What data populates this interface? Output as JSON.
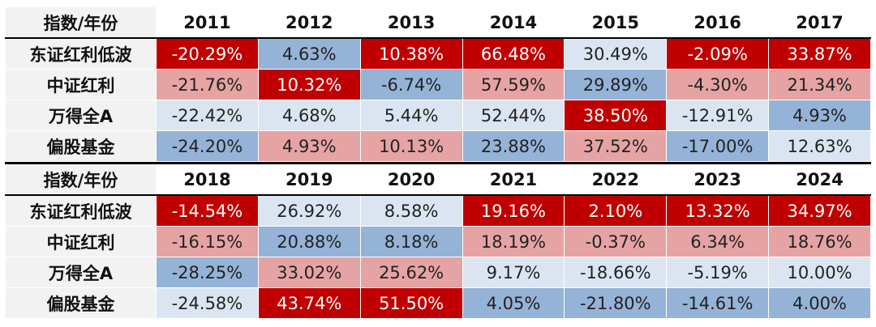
{
  "tables": [
    {
      "header": [
        "指数/年份",
        "2011",
        "2012",
        "2013",
        "2014",
        "2015",
        "2016",
        "2017"
      ],
      "rows": [
        [
          "东证红利低波",
          "-20.29%",
          "4.63%",
          "10.38%",
          "66.48%",
          "30.49%",
          "-2.09%",
          "33.87%"
        ],
        [
          "中证红利",
          "-21.76%",
          "10.32%",
          "-6.74%",
          "57.59%",
          "29.89%",
          "-4.30%",
          "21.34%"
        ],
        [
          "万得全A",
          "-22.42%",
          "4.68%",
          "5.44%",
          "52.44%",
          "38.50%",
          "-12.91%",
          "4.93%"
        ],
        [
          "偏股基金",
          "-24.20%",
          "4.93%",
          "10.13%",
          "23.88%",
          "37.52%",
          "-17.00%",
          "12.63%"
        ]
      ],
      "colors": [
        [
          "#c00000",
          "#95b3d7",
          "#c00000",
          "#c00000",
          "#dbe5f1",
          "#c00000",
          "#c00000"
        ],
        [
          "#e6a3a3",
          "#c00000",
          "#95b3d7",
          "#e6a3a3",
          "#95b3d7",
          "#e6a3a3",
          "#e6a3a3"
        ],
        [
          "#dbe5f1",
          "#dbe5f1",
          "#dbe5f1",
          "#dbe5f1",
          "#c00000",
          "#dbe5f1",
          "#95b3d7"
        ],
        [
          "#95b3d7",
          "#e6a3a3",
          "#e6a3a3",
          "#95b3d7",
          "#e6a3a3",
          "#95b3d7",
          "#dbe5f1"
        ]
      ]
    },
    {
      "header": [
        "指数/年份",
        "2018",
        "2019",
        "2020",
        "2021",
        "2022",
        "2023",
        "2024"
      ],
      "rows": [
        [
          "东证红利低波",
          "-14.54%",
          "26.92%",
          "8.58%",
          "19.16%",
          "2.10%",
          "13.32%",
          "34.97%"
        ],
        [
          "中证红利",
          "-16.15%",
          "20.88%",
          "8.18%",
          "18.19%",
          "-0.37%",
          "6.34%",
          "18.76%"
        ],
        [
          "万得全A",
          "-28.25%",
          "33.02%",
          "25.62%",
          "9.17%",
          "-18.66%",
          "-5.19%",
          "10.00%"
        ],
        [
          "偏股基金",
          "-24.58%",
          "43.74%",
          "51.50%",
          "4.05%",
          "-21.80%",
          "-14.61%",
          "4.00%"
        ]
      ],
      "colors": [
        [
          "#c00000",
          "#dbe5f1",
          "#dbe5f1",
          "#c00000",
          "#c00000",
          "#c00000",
          "#c00000"
        ],
        [
          "#e6a3a3",
          "#95b3d7",
          "#95b3d7",
          "#e6a3a3",
          "#e6a3a3",
          "#e6a3a3",
          "#e6a3a3"
        ],
        [
          "#95b3d7",
          "#e6a3a3",
          "#e6a3a3",
          "#dbe5f1",
          "#dbe5f1",
          "#dbe5f1",
          "#dbe5f1"
        ],
        [
          "#dbe5f1",
          "#c00000",
          "#c00000",
          "#95b3d7",
          "#95b3d7",
          "#95b3d7",
          "#95b3d7"
        ]
      ]
    }
  ]
}
